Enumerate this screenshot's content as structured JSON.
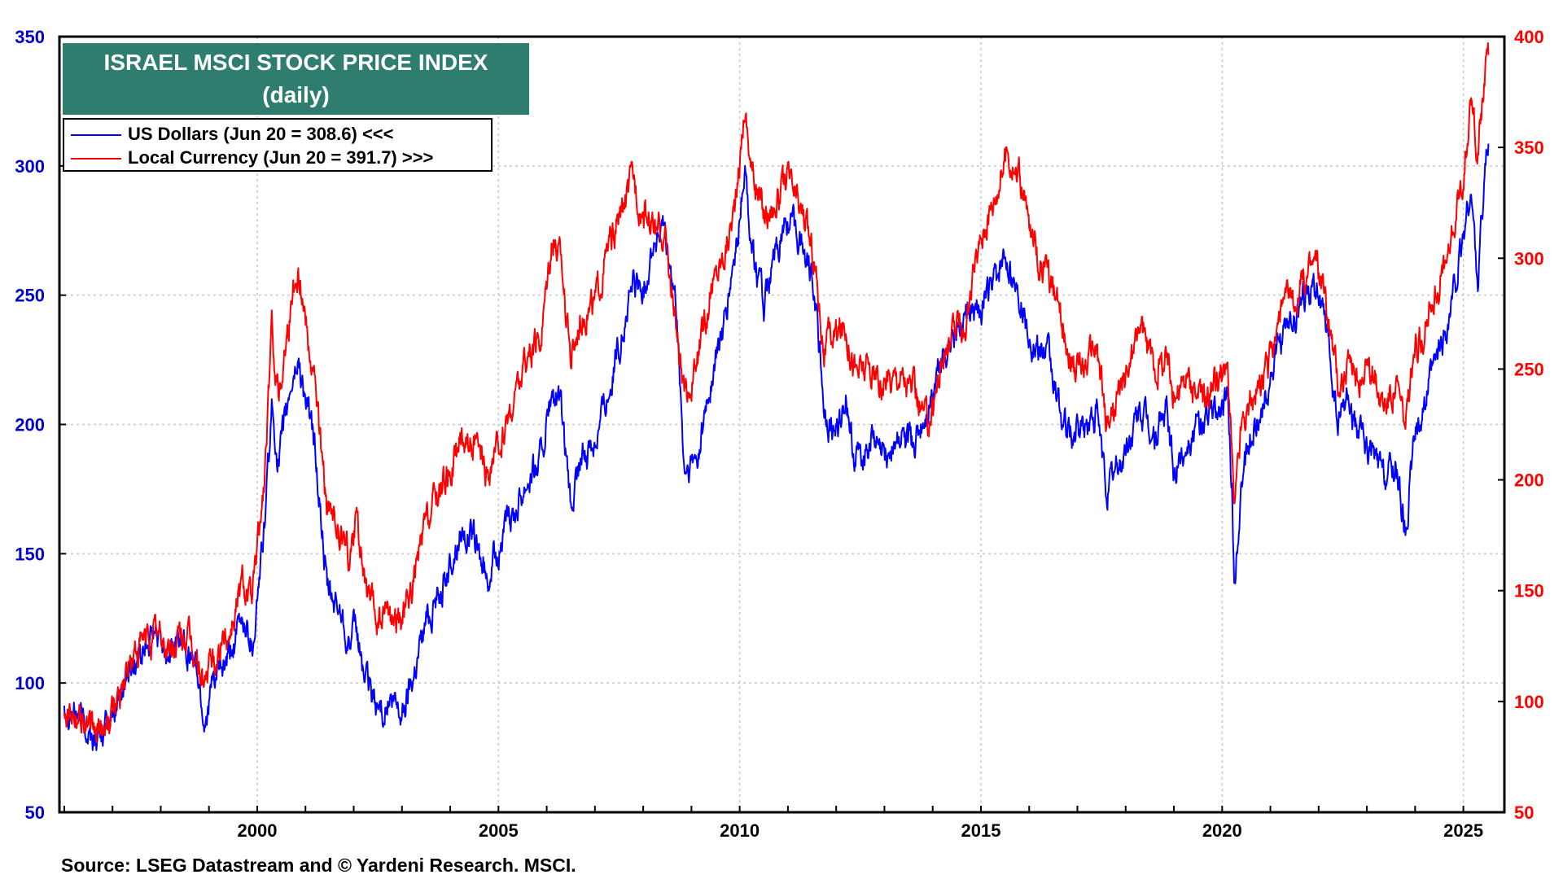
{
  "chart_data": {
    "type": "line",
    "title": "ISRAEL MSCI STOCK PRICE INDEX",
    "subtitle": "(daily)",
    "source": "Source: LSEG Datastream and © Yardeni Research. MSCI.",
    "x_range": [
      1995.9,
      2025.85
    ],
    "x_ticks": [
      "2000",
      "2005",
      "2010",
      "2015",
      "2020",
      "2025"
    ],
    "y_left": {
      "range": [
        50,
        350
      ],
      "ticks": [
        "50",
        "100",
        "150",
        "200",
        "250",
        "300",
        "350"
      ],
      "color": "#0000cc"
    },
    "y_right": {
      "range": [
        50,
        400
      ],
      "ticks": [
        "50",
        "100",
        "150",
        "200",
        "250",
        "300",
        "350",
        "400"
      ],
      "color": "#ff0000"
    },
    "grid": true,
    "legend_position": "top-left",
    "series": [
      {
        "name": "US Dollars (Jun 20 = 308.6) <<<",
        "axis": "left",
        "color": "#0000ff",
        "points": [
          [
            1996.0,
            92
          ],
          [
            1996.3,
            88
          ],
          [
            1996.6,
            78
          ],
          [
            1996.9,
            82
          ],
          [
            1997.3,
            103
          ],
          [
            1997.6,
            112
          ],
          [
            1997.9,
            118
          ],
          [
            1998.2,
            112
          ],
          [
            1998.5,
            118
          ],
          [
            1998.75,
            105
          ],
          [
            1998.9,
            85
          ],
          [
            1999.1,
            100
          ],
          [
            1999.4,
            108
          ],
          [
            1999.7,
            125
          ],
          [
            1999.9,
            115
          ],
          [
            2000.15,
            160
          ],
          [
            2000.3,
            205
          ],
          [
            2000.45,
            185
          ],
          [
            2000.7,
            215
          ],
          [
            2000.85,
            225
          ],
          [
            2001.0,
            210
          ],
          [
            2001.2,
            190
          ],
          [
            2001.45,
            135
          ],
          [
            2001.6,
            130
          ],
          [
            2001.75,
            128
          ],
          [
            2001.9,
            115
          ],
          [
            2002.05,
            120
          ],
          [
            2002.25,
            100
          ],
          [
            2002.5,
            90
          ],
          [
            2002.75,
            92
          ],
          [
            2003.0,
            88
          ],
          [
            2003.25,
            105
          ],
          [
            2003.5,
            125
          ],
          [
            2003.75,
            135
          ],
          [
            2004.0,
            145
          ],
          [
            2004.25,
            160
          ],
          [
            2004.5,
            155
          ],
          [
            2004.75,
            140
          ],
          [
            2004.95,
            150
          ],
          [
            2005.3,
            165
          ],
          [
            2005.6,
            180
          ],
          [
            2005.85,
            185
          ],
          [
            2006.1,
            210
          ],
          [
            2006.3,
            205
          ],
          [
            2006.5,
            165
          ],
          [
            2006.7,
            185
          ],
          [
            2007.0,
            195
          ],
          [
            2007.3,
            215
          ],
          [
            2007.55,
            235
          ],
          [
            2007.8,
            255
          ],
          [
            2008.0,
            250
          ],
          [
            2008.2,
            270
          ],
          [
            2008.45,
            275
          ],
          [
            2008.7,
            240
          ],
          [
            2008.85,
            180
          ],
          [
            2009.1,
            185
          ],
          [
            2009.4,
            215
          ],
          [
            2009.7,
            240
          ],
          [
            2009.95,
            270
          ],
          [
            2010.1,
            300
          ],
          [
            2010.25,
            270
          ],
          [
            2010.5,
            245
          ],
          [
            2010.75,
            265
          ],
          [
            2011.0,
            280
          ],
          [
            2011.3,
            270
          ],
          [
            2011.55,
            255
          ],
          [
            2011.75,
            205
          ],
          [
            2011.95,
            195
          ],
          [
            2012.2,
            210
          ],
          [
            2012.4,
            185
          ],
          [
            2012.7,
            195
          ],
          [
            2012.95,
            188
          ],
          [
            2013.3,
            195
          ],
          [
            2013.6,
            190
          ],
          [
            2013.9,
            205
          ],
          [
            2014.15,
            225
          ],
          [
            2014.4,
            235
          ],
          [
            2014.7,
            240
          ],
          [
            2015.0,
            245
          ],
          [
            2015.3,
            255
          ],
          [
            2015.55,
            265
          ],
          [
            2015.8,
            250
          ],
          [
            2016.1,
            230
          ],
          [
            2016.4,
            225
          ],
          [
            2016.7,
            200
          ],
          [
            2016.95,
            195
          ],
          [
            2017.2,
            200
          ],
          [
            2017.4,
            205
          ],
          [
            2017.6,
            175
          ],
          [
            2017.8,
            182
          ],
          [
            2018.0,
            190
          ],
          [
            2018.3,
            205
          ],
          [
            2018.6,
            195
          ],
          [
            2018.85,
            205
          ],
          [
            2019.0,
            180
          ],
          [
            2019.3,
            195
          ],
          [
            2019.6,
            200
          ],
          [
            2019.9,
            205
          ],
          [
            2020.1,
            210
          ],
          [
            2020.2,
            175
          ],
          [
            2020.25,
            135
          ],
          [
            2020.4,
            180
          ],
          [
            2020.7,
            200
          ],
          [
            2020.95,
            215
          ],
          [
            2021.2,
            230
          ],
          [
            2021.45,
            240
          ],
          [
            2021.7,
            250
          ],
          [
            2021.95,
            255
          ],
          [
            2022.2,
            230
          ],
          [
            2022.4,
            200
          ],
          [
            2022.6,
            210
          ],
          [
            2022.85,
            195
          ],
          [
            2023.1,
            190
          ],
          [
            2023.35,
            180
          ],
          [
            2023.6,
            185
          ],
          [
            2023.8,
            160
          ],
          [
            2024.0,
            195
          ],
          [
            2024.2,
            210
          ],
          [
            2024.4,
            220
          ],
          [
            2024.7,
            240
          ],
          [
            2024.95,
            265
          ],
          [
            2025.15,
            290
          ],
          [
            2025.3,
            255
          ],
          [
            2025.45,
            300
          ],
          [
            2025.52,
            308.6
          ]
        ]
      },
      {
        "name": "Local Currency (Jun 20 = 391.7) >>>",
        "axis": "right",
        "color": "#ff0000",
        "points": [
          [
            1996.0,
            100
          ],
          [
            1996.3,
            97
          ],
          [
            1996.6,
            85
          ],
          [
            1996.9,
            90
          ],
          [
            1997.3,
            115
          ],
          [
            1997.6,
            125
          ],
          [
            1997.9,
            130
          ],
          [
            1998.2,
            122
          ],
          [
            1998.5,
            130
          ],
          [
            1998.75,
            118
          ],
          [
            1998.9,
            108
          ],
          [
            1999.1,
            120
          ],
          [
            1999.4,
            130
          ],
          [
            1999.7,
            155
          ],
          [
            1999.9,
            145
          ],
          [
            2000.15,
            200
          ],
          [
            2000.3,
            265
          ],
          [
            2000.45,
            240
          ],
          [
            2000.7,
            280
          ],
          [
            2000.85,
            295
          ],
          [
            2001.0,
            275
          ],
          [
            2001.2,
            245
          ],
          [
            2001.45,
            185
          ],
          [
            2001.6,
            180
          ],
          [
            2001.75,
            175
          ],
          [
            2001.9,
            165
          ],
          [
            2002.05,
            185
          ],
          [
            2002.25,
            150
          ],
          [
            2002.5,
            135
          ],
          [
            2002.75,
            140
          ],
          [
            2003.0,
            135
          ],
          [
            2003.25,
            155
          ],
          [
            2003.5,
            180
          ],
          [
            2003.75,
            195
          ],
          [
            2004.0,
            205
          ],
          [
            2004.25,
            220
          ],
          [
            2004.5,
            215
          ],
          [
            2004.75,
            200
          ],
          [
            2004.95,
            210
          ],
          [
            2005.3,
            235
          ],
          [
            2005.6,
            255
          ],
          [
            2005.85,
            260
          ],
          [
            2006.1,
            310
          ],
          [
            2006.3,
            300
          ],
          [
            2006.5,
            255
          ],
          [
            2006.7,
            275
          ],
          [
            2007.0,
            280
          ],
          [
            2007.3,
            305
          ],
          [
            2007.55,
            320
          ],
          [
            2007.8,
            335
          ],
          [
            2008.0,
            320
          ],
          [
            2008.2,
            315
          ],
          [
            2008.45,
            310
          ],
          [
            2008.7,
            265
          ],
          [
            2008.85,
            235
          ],
          [
            2009.1,
            250
          ],
          [
            2009.4,
            285
          ],
          [
            2009.7,
            305
          ],
          [
            2009.95,
            330
          ],
          [
            2010.1,
            370
          ],
          [
            2010.25,
            340
          ],
          [
            2010.5,
            320
          ],
          [
            2010.75,
            325
          ],
          [
            2011.0,
            335
          ],
          [
            2011.3,
            320
          ],
          [
            2011.55,
            300
          ],
          [
            2011.75,
            260
          ],
          [
            2011.95,
            265
          ],
          [
            2012.2,
            270
          ],
          [
            2012.4,
            250
          ],
          [
            2012.7,
            250
          ],
          [
            2012.95,
            240
          ],
          [
            2013.3,
            250
          ],
          [
            2013.6,
            240
          ],
          [
            2013.9,
            225
          ],
          [
            2014.15,
            250
          ],
          [
            2014.4,
            265
          ],
          [
            2014.7,
            270
          ],
          [
            2015.0,
            310
          ],
          [
            2015.3,
            330
          ],
          [
            2015.55,
            350
          ],
          [
            2015.8,
            335
          ],
          [
            2016.1,
            305
          ],
          [
            2016.4,
            290
          ],
          [
            2016.7,
            270
          ],
          [
            2016.95,
            250
          ],
          [
            2017.2,
            255
          ],
          [
            2017.4,
            260
          ],
          [
            2017.6,
            225
          ],
          [
            2017.8,
            235
          ],
          [
            2018.0,
            245
          ],
          [
            2018.3,
            270
          ],
          [
            2018.6,
            250
          ],
          [
            2018.85,
            255
          ],
          [
            2019.0,
            240
          ],
          [
            2019.3,
            245
          ],
          [
            2019.6,
            235
          ],
          [
            2019.9,
            245
          ],
          [
            2020.1,
            250
          ],
          [
            2020.2,
            215
          ],
          [
            2020.25,
            185
          ],
          [
            2020.4,
            225
          ],
          [
            2020.7,
            240
          ],
          [
            2020.95,
            250
          ],
          [
            2021.2,
            275
          ],
          [
            2021.45,
            280
          ],
          [
            2021.7,
            290
          ],
          [
            2021.95,
            300
          ],
          [
            2022.2,
            275
          ],
          [
            2022.4,
            245
          ],
          [
            2022.6,
            250
          ],
          [
            2022.85,
            245
          ],
          [
            2023.1,
            250
          ],
          [
            2023.35,
            235
          ],
          [
            2023.6,
            245
          ],
          [
            2023.8,
            225
          ],
          [
            2024.0,
            255
          ],
          [
            2024.2,
            270
          ],
          [
            2024.4,
            285
          ],
          [
            2024.7,
            300
          ],
          [
            2024.95,
            330
          ],
          [
            2025.15,
            370
          ],
          [
            2025.3,
            350
          ],
          [
            2025.45,
            385
          ],
          [
            2025.52,
            391.7
          ]
        ]
      }
    ]
  }
}
